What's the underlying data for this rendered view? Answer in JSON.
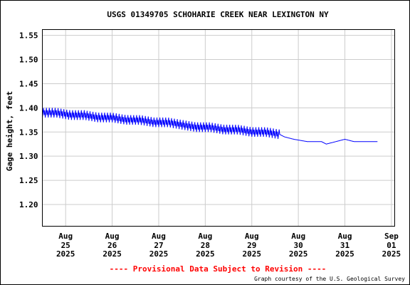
{
  "chart_data": {
    "type": "line",
    "title": "USGS 01349705 SCHOHARIE CREEK NEAR LEXINGTON NY",
    "ylabel": "Gage height, feet",
    "xlabel": "",
    "ylim": [
      1.155,
      1.562
    ],
    "xlim": [
      0,
      7.57
    ],
    "y_ticks": [
      "1.20",
      "1.25",
      "1.30",
      "1.35",
      "1.40",
      "1.45",
      "1.50",
      "1.55"
    ],
    "y_tick_values": [
      1.2,
      1.25,
      1.3,
      1.35,
      1.4,
      1.45,
      1.5,
      1.55
    ],
    "x_ticks": [
      {
        "month": "Aug",
        "day": "25",
        "year": "2025"
      },
      {
        "month": "Aug",
        "day": "26",
        "year": "2025"
      },
      {
        "month": "Aug",
        "day": "27",
        "year": "2025"
      },
      {
        "month": "Aug",
        "day": "28",
        "year": "2025"
      },
      {
        "month": "Aug",
        "day": "29",
        "year": "2025"
      },
      {
        "month": "Aug",
        "day": "30",
        "year": "2025"
      },
      {
        "month": "Aug",
        "day": "31",
        "year": "2025"
      },
      {
        "month": "Sep",
        "day": "01",
        "year": "2025"
      }
    ],
    "x_tick_values": [
      0.5,
      1.5,
      2.5,
      3.5,
      4.5,
      5.5,
      6.5,
      7.5
    ],
    "grid": true,
    "series_color": "#0000ff",
    "series": [
      {
        "x": [
          0.0,
          0.3,
          0.6,
          0.9,
          1.2,
          1.5,
          1.8,
          2.1,
          2.4,
          2.7,
          3.0,
          3.3,
          3.6,
          3.9,
          4.2,
          4.5,
          4.8,
          5.1,
          5.2,
          5.4,
          5.7,
          6.0,
          6.1,
          6.3,
          6.5,
          6.7,
          6.9,
          7.0,
          7.2
        ],
        "y": [
          1.39,
          1.39,
          1.385,
          1.385,
          1.38,
          1.38,
          1.375,
          1.375,
          1.37,
          1.37,
          1.365,
          1.36,
          1.36,
          1.355,
          1.355,
          1.35,
          1.35,
          1.345,
          1.34,
          1.335,
          1.33,
          1.33,
          1.325,
          1.33,
          1.335,
          1.33,
          1.33,
          1.33,
          1.33
        ]
      }
    ]
  },
  "footer": {
    "provisional": "---- Provisional Data Subject to Revision ----",
    "credit": "Graph courtesy of the U.S. Geological Survey"
  }
}
